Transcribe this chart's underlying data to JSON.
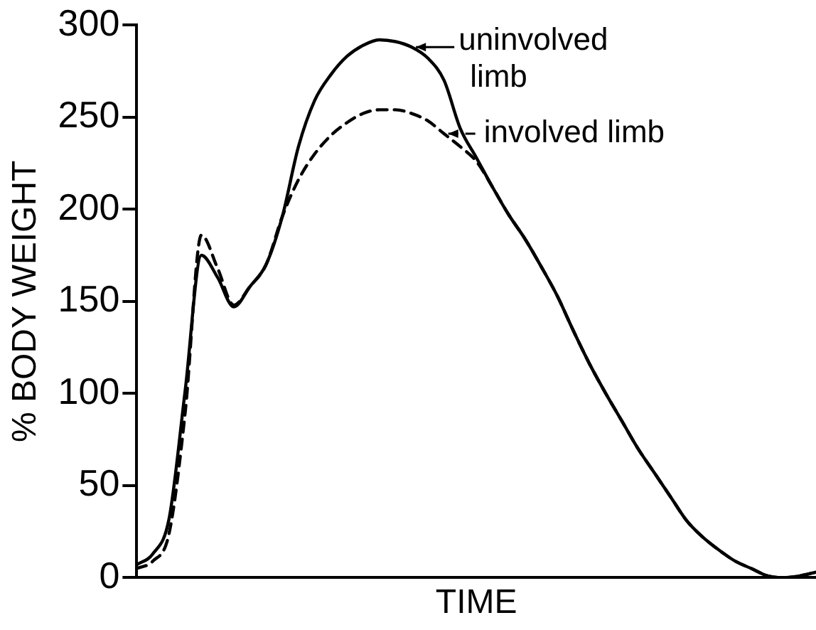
{
  "chart_data": {
    "type": "line",
    "xlabel": "TIME",
    "ylabel": "% BODY WEIGHT",
    "categories": [
      null,
      null,
      null,
      null,
      null,
      null,
      null,
      null,
      null,
      null,
      null,
      null,
      null,
      null,
      null,
      null,
      null,
      null,
      null,
      null,
      null,
      null,
      null,
      null,
      null,
      null,
      null,
      null,
      null,
      null,
      null,
      null,
      null,
      null,
      null,
      null,
      null,
      null,
      null,
      null,
      null,
      null,
      null
    ],
    "series": [
      {
        "name": "uninvolved limb",
        "color": "#000000",
        "line_style": "solid",
        "values": [
          7,
          13,
          32,
          102,
          175,
          163,
          147,
          158,
          170,
          196,
          234,
          259,
          273,
          283,
          289,
          292,
          291,
          288,
          282,
          270,
          244,
          228,
          212,
          197,
          184,
          169,
          153,
          134,
          116,
          100,
          85,
          70,
          57,
          44,
          31,
          22,
          15,
          9,
          5,
          1,
          0,
          1,
          3
        ]
      },
      {
        "name": "involved limb",
        "color": "#000000",
        "line_style": "dashed",
        "values": [
          5,
          9,
          24,
          90,
          186,
          168,
          148,
          158,
          170,
          196,
          216,
          230,
          240,
          247,
          252,
          254,
          254,
          252,
          248,
          241,
          234,
          226,
          212,
          197,
          184,
          169,
          153,
          134,
          116,
          100,
          85,
          70,
          57,
          44,
          31,
          22,
          15,
          9,
          5,
          1,
          0,
          1,
          3
        ]
      }
    ],
    "ylim": [
      0,
      300
    ],
    "yticks": [
      0,
      50,
      100,
      150,
      200,
      250,
      300
    ],
    "grid": false,
    "legend": "top right",
    "marker": "none",
    "tick_labels": "y"
  }
}
